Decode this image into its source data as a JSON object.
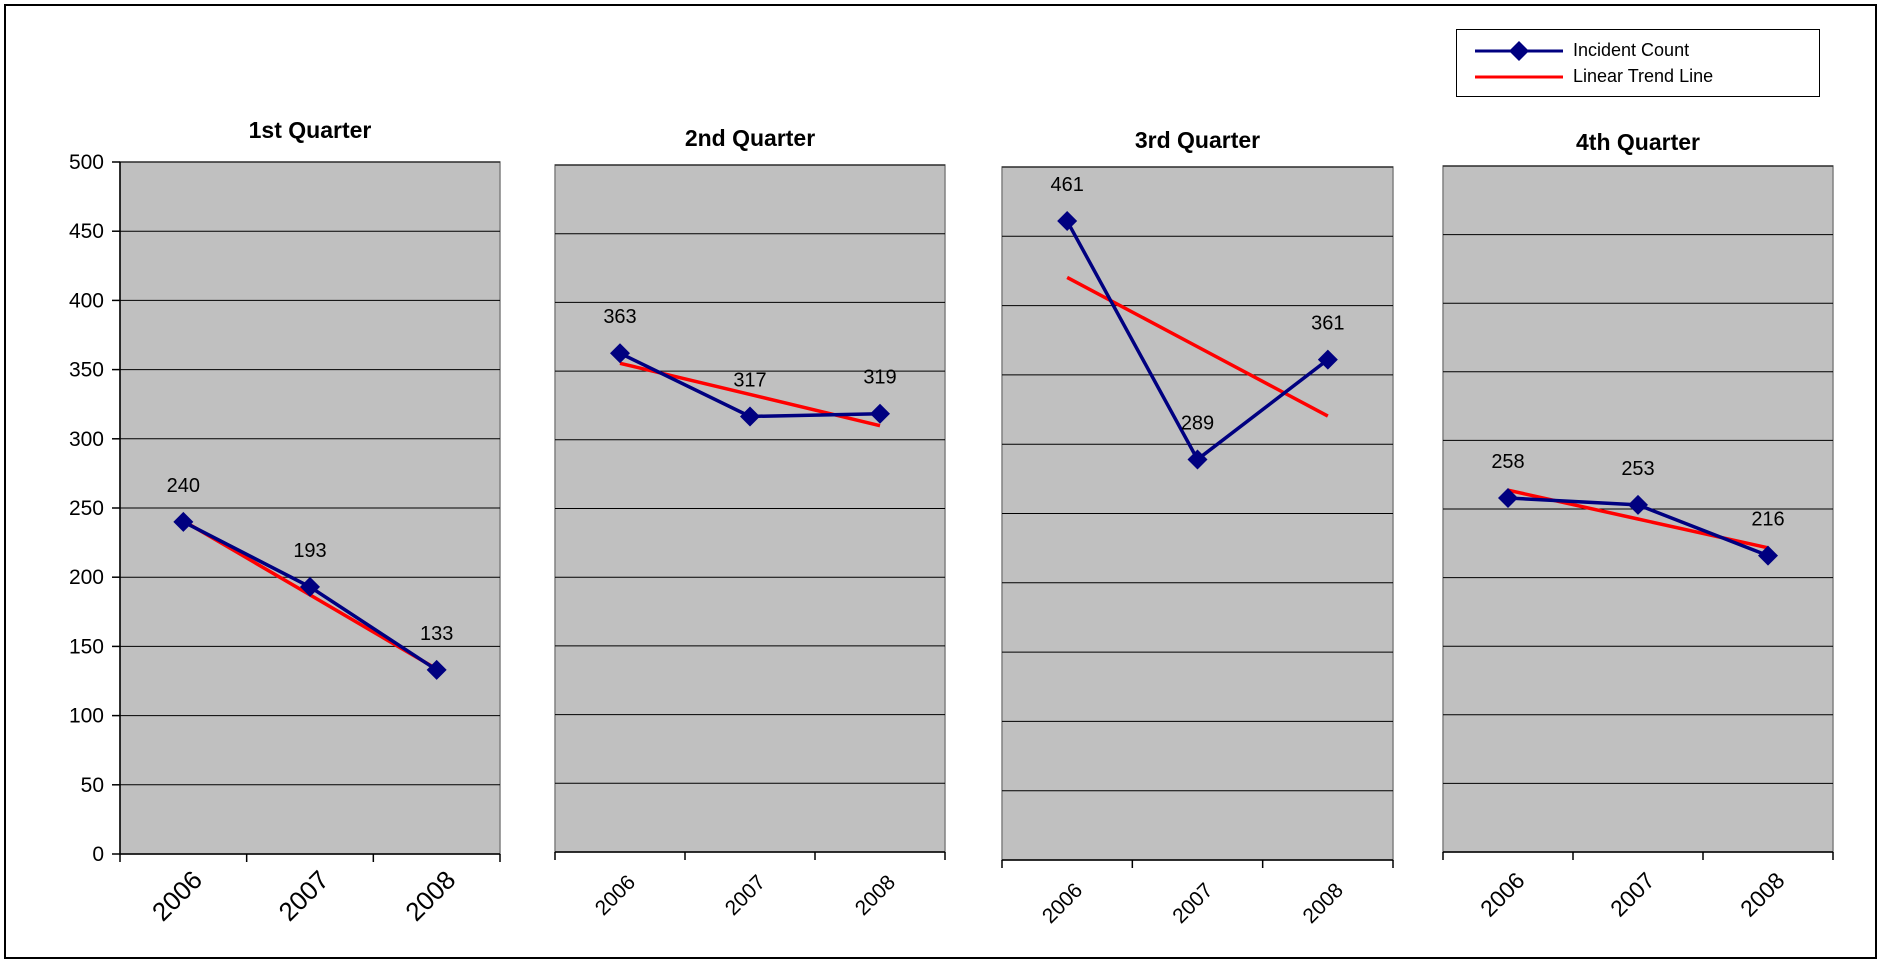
{
  "legend": {
    "items": [
      {
        "label": "Incident Count",
        "color": "#000080",
        "marker": "diamond"
      },
      {
        "label": "Linear Trend Line",
        "color": "#ff0000",
        "marker": "none"
      }
    ]
  },
  "colors": {
    "plot_area": "#c0c0c0",
    "gridline": "#000000",
    "series": "#000080",
    "trend": "#ff0000"
  },
  "chart_data": [
    {
      "type": "line",
      "title": "1st Quarter",
      "categories": [
        "2006",
        "2007",
        "2008"
      ],
      "ylim": [
        0,
        500
      ],
      "yticks": [
        "0",
        "50",
        "100",
        "150",
        "200",
        "250",
        "300",
        "350",
        "400",
        "450",
        "500"
      ],
      "grid": true,
      "series": [
        {
          "name": "Incident Count",
          "values": [
            240,
            193,
            133
          ]
        },
        {
          "name": "Linear Trend Line",
          "values": [
            240.7,
            187.2,
            133.7
          ]
        }
      ]
    },
    {
      "type": "line",
      "title": "2nd Quarter",
      "categories": [
        "2006",
        "2007",
        "2008"
      ],
      "ylim": [
        0,
        500
      ],
      "grid": true,
      "series": [
        {
          "name": "Incident Count",
          "values": [
            363,
            317,
            319
          ]
        },
        {
          "name": "Linear Trend Line",
          "values": [
            355.7,
            333.0,
            310.3
          ]
        }
      ]
    },
    {
      "type": "line",
      "title": "3rd Quarter",
      "categories": [
        "2006",
        "2007",
        "2008"
      ],
      "ylim": [
        0,
        500
      ],
      "grid": true,
      "series": [
        {
          "name": "Incident Count",
          "values": [
            461,
            289,
            361
          ]
        },
        {
          "name": "Linear Trend Line",
          "values": [
            420.3,
            370.3,
            320.3
          ]
        }
      ]
    },
    {
      "type": "line",
      "title": "4th Quarter",
      "categories": [
        "2006",
        "2007",
        "2008"
      ],
      "ylim": [
        0,
        500
      ],
      "grid": true,
      "series": [
        {
          "name": "Incident Count",
          "values": [
            258,
            253,
            216
          ]
        },
        {
          "name": "Linear Trend Line",
          "values": [
            263.7,
            242.7,
            221.7
          ]
        }
      ]
    }
  ]
}
